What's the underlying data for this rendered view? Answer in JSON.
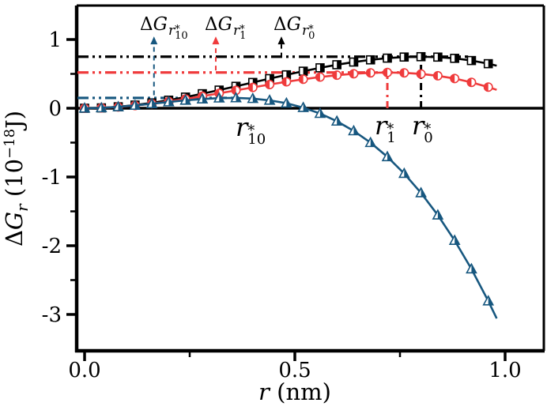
{
  "figure": {
    "background": "#ffffff",
    "labels": {
      "y_title": {
        "delta": "Δ",
        "g": "G",
        "sub": "r",
        "open": " (10",
        "exp": "−18",
        "close": "J)"
      },
      "x_title": {
        "var": "r",
        "unit": " (nm)"
      },
      "dg_r10": {
        "delta": "Δ",
        "g": "G",
        "base": "r",
        "star": "*",
        "idx": "10"
      },
      "dg_r1": {
        "delta": "Δ",
        "g": "G",
        "base": "r",
        "star": "*",
        "idx": "1"
      },
      "dg_r0": {
        "delta": "Δ",
        "g": "G",
        "base": "r",
        "star": "*",
        "idx": "0"
      },
      "r10": {
        "base": "r",
        "star": "*",
        "idx": "10"
      },
      "r1": {
        "base": "r",
        "star": "*",
        "idx": "1"
      },
      "r0": {
        "base": "r",
        "star": "*",
        "idx": "0"
      }
    }
  },
  "chart_data": {
    "type": "line",
    "title": "",
    "xlabel": "r (nm)",
    "ylabel": "ΔG_r (10^−18 J)",
    "xlim": [
      -0.02,
      1.09
    ],
    "ylim": [
      -3.53,
      1.48
    ],
    "grid": false,
    "legend": "none",
    "x_ticks": {
      "major": [
        {
          "v": 0.0,
          "label": "0.0"
        },
        {
          "v": 0.5,
          "label": "0.5"
        },
        {
          "v": 1.0,
          "label": "1.0"
        }
      ],
      "minor": [
        0.25,
        0.75
      ]
    },
    "y_ticks": {
      "major": [
        {
          "v": 1,
          "label": "1"
        },
        {
          "v": 0,
          "label": "0"
        },
        {
          "v": -1,
          "label": "-1"
        },
        {
          "v": -2,
          "label": "-2"
        },
        {
          "v": -3,
          "label": "-3"
        }
      ],
      "minor": [
        0.5,
        -0.5,
        -1.5,
        -2.5
      ]
    },
    "x": [
      0,
      0.04,
      0.08,
      0.12,
      0.16,
      0.2,
      0.24,
      0.28,
      0.32,
      0.36,
      0.4,
      0.44,
      0.48,
      0.52,
      0.56,
      0.6,
      0.64,
      0.68,
      0.72,
      0.76,
      0.8,
      0.84,
      0.88,
      0.92,
      0.96,
      0.98
    ],
    "series": [
      {
        "id": "curve-r0",
        "color": "#000000",
        "marker": "square",
        "half_filled": "right",
        "r_star": 0.8,
        "dg_star": 0.75,
        "values": [
          0,
          0.005,
          0.021,
          0.046,
          0.078,
          0.117,
          0.162,
          0.211,
          0.264,
          0.319,
          0.375,
          0.431,
          0.486,
          0.539,
          0.588,
          0.633,
          0.672,
          0.704,
          0.729,
          0.745,
          0.75,
          0.744,
          0.726,
          0.694,
          0.648,
          0.619
        ]
      },
      {
        "id": "curve-r1",
        "color": "#ef3b3c",
        "marker": "circle",
        "half_filled": "left",
        "r_star": 0.72,
        "dg_star": 0.52,
        "values": [
          0,
          0.005,
          0.018,
          0.039,
          0.066,
          0.098,
          0.135,
          0.175,
          0.217,
          0.26,
          0.303,
          0.345,
          0.385,
          0.422,
          0.454,
          0.481,
          0.502,
          0.515,
          0.52,
          0.515,
          0.499,
          0.472,
          0.432,
          0.377,
          0.308,
          0.268
        ]
      },
      {
        "id": "curve-r10",
        "color": "#17577f",
        "marker": "triangle",
        "half_filled": "right",
        "r_star": 0.35,
        "dg_star": 0.15,
        "values": [
          0,
          0.005,
          0.02,
          0.041,
          0.065,
          0.091,
          0.115,
          0.134,
          0.147,
          0.15,
          0.14,
          0.115,
          0.073,
          0.009,
          -0.077,
          -0.189,
          -0.33,
          -0.501,
          -0.707,
          -0.95,
          -1.232,
          -1.555,
          -1.924,
          -2.339,
          -2.805,
          -3.058
        ]
      }
    ],
    "zero_line": 0,
    "guide_lines": [
      {
        "value": 0.75,
        "color": "#000000",
        "r_to": 0.912
      },
      {
        "value": 0.52,
        "color": "#ef3b3c",
        "r_to": 0.771
      },
      {
        "value": 0.15,
        "color": "#17577f",
        "r_to": 0.366
      }
    ],
    "peak_lines": [
      {
        "r": 0.72,
        "value_top": 0.52,
        "color": "#ef3b3c"
      },
      {
        "r": 0.8,
        "value_top": 0.745,
        "color": "#000000"
      }
    ],
    "label_arrows": [
      {
        "r": 0.165,
        "v_from": 0.19,
        "v_to": 0.93,
        "color": "#17577f"
      },
      {
        "r": 0.312,
        "v_from": 0.55,
        "v_to": 0.93,
        "color": "#ef3b3c"
      },
      {
        "r": 0.468,
        "v_from": 0.74,
        "v_to": 0.93,
        "color": "#000000"
      }
    ]
  }
}
